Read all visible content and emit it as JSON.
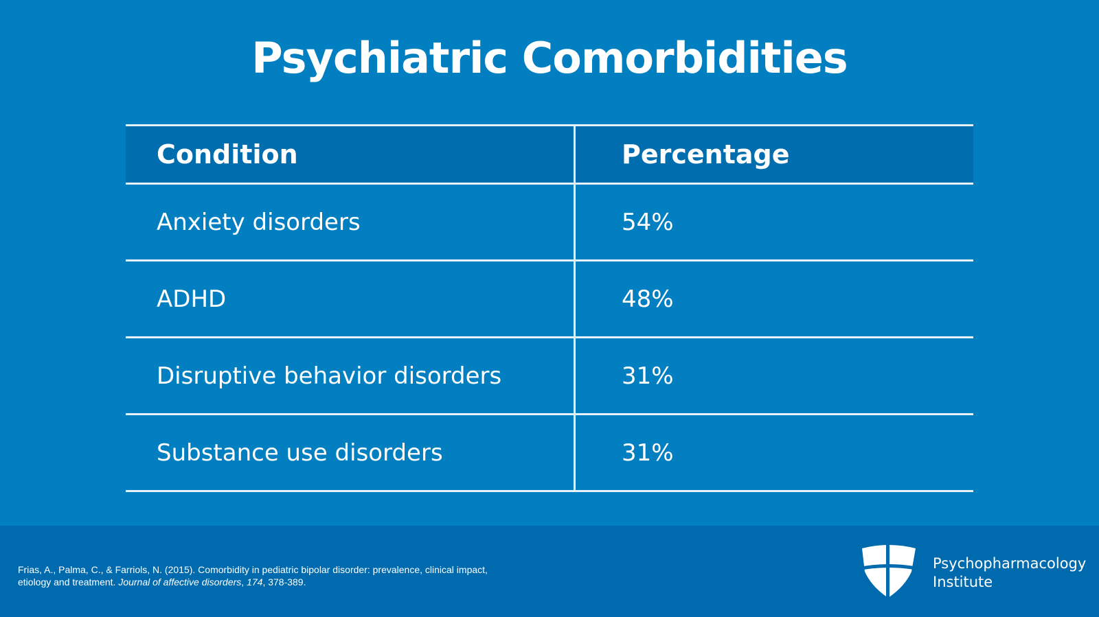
{
  "title": "Psychiatric Comorbidities",
  "table": {
    "headers": [
      "Condition",
      "Percentage"
    ],
    "rows": [
      {
        "condition": "Anxiety disorders",
        "percentage": "54%"
      },
      {
        "condition": "ADHD",
        "percentage": "48%"
      },
      {
        "condition": "Disruptive behavior disorders",
        "percentage": "31%"
      },
      {
        "condition": "Substance use disorders",
        "percentage": "31%"
      }
    ]
  },
  "citation": {
    "line1": "Frias, A., Palma, C., & Farriols, N. (2015). Comorbidity in pediatric bipolar disorder: prevalence, clinical impact,",
    "line2_plain": "etiology and treatment. ",
    "journal": "Journal of affective disorders",
    "sep": ", ",
    "volume": "174",
    "pages": ", 378-389."
  },
  "brand": {
    "line1": "Psychopharmacology",
    "line2": "Institute"
  },
  "colors": {
    "background": "#027fc1",
    "header": "#006dae",
    "footer": "#006aae"
  }
}
